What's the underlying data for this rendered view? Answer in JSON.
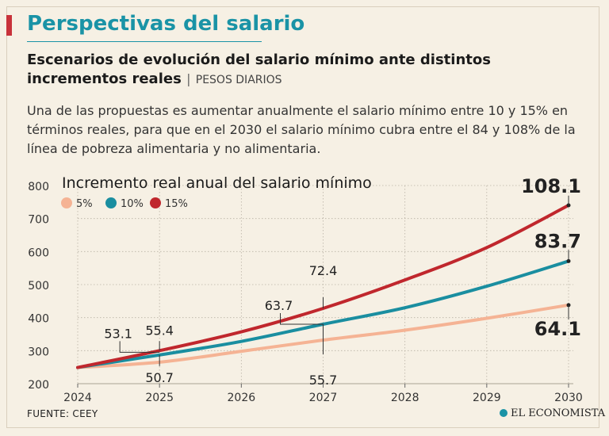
{
  "header": {
    "title": "Perspectivas del salario",
    "subtitle": "Escenarios de evolución del salario mínimo ante distintos incrementos reales",
    "separator": "|",
    "units": "PESOS DIARIOS",
    "description": "Una de las propuestas es aumentar anualmente el salario mínimo entre 10 y 15% en términos reales, para que en el 2030 el salario mínimo cubra entre el 84 y 108% de la línea de pobreza alimentaria y no alimentaria."
  },
  "footer": {
    "source": "FUENTE: CEEY",
    "brand": "EL ECONOMISTA"
  },
  "colors": {
    "s5": "#f5b394",
    "s10": "#1a8ea0",
    "s15": "#c0272d",
    "grid": "#b9b2a5",
    "title": "#1a93a6",
    "accent": "#c8323a"
  },
  "chart_data": {
    "type": "line",
    "title": "Incremento real anual del salario mínimo",
    "xlabel": "",
    "ylabel": "",
    "x": [
      2024,
      2025,
      2026,
      2027,
      2028,
      2029,
      2030
    ],
    "ylim": [
      200,
      800
    ],
    "yticks": [
      200,
      300,
      400,
      500,
      600,
      700,
      800
    ],
    "grid": true,
    "legend_position": "top-left",
    "series": [
      {
        "name": "5%",
        "color": "#f5b394",
        "values": [
          249,
          265,
          298,
          332,
          362,
          398,
          438
        ]
      },
      {
        "name": "10%",
        "color": "#1a8ea0",
        "values": [
          249,
          287,
          328,
          380,
          430,
          495,
          571
        ]
      },
      {
        "name": "15%",
        "color": "#c0272d",
        "values": [
          249,
          300,
          357,
          428,
          514,
          612,
          740
        ]
      }
    ],
    "annotations": [
      {
        "text": "53.1",
        "x": 2025,
        "y": 300,
        "series": "15%"
      },
      {
        "text": "55.4",
        "x": 2025,
        "y": 300,
        "series": "15%"
      },
      {
        "text": "50.7",
        "x": 2025,
        "y": 287,
        "series": "10%"
      },
      {
        "text": "63.7",
        "x": 2027,
        "y": 380,
        "series": "10%"
      },
      {
        "text": "72.4",
        "x": 2027,
        "y": 428,
        "series": "15%"
      },
      {
        "text": "55.7",
        "x": 2027,
        "y": 380,
        "series": "10%"
      },
      {
        "text": "108.1",
        "x": 2030,
        "y": 740,
        "series": "15%"
      },
      {
        "text": "83.7",
        "x": 2030,
        "y": 571,
        "series": "10%"
      },
      {
        "text": "64.1",
        "x": 2030,
        "y": 438,
        "series": "5%"
      }
    ]
  }
}
